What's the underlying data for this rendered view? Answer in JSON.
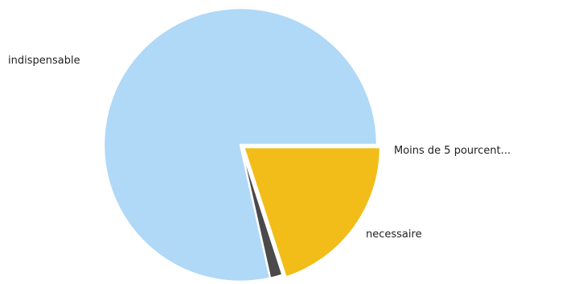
{
  "chart_data": {
    "type": "pie",
    "slices": [
      {
        "label": "indispensable",
        "value": 78.5,
        "color": "#b0d8f7"
      },
      {
        "label": "Moins de 5 pourcent...",
        "value": 1.5,
        "color": "#4a4a4a"
      },
      {
        "label": "necessaire",
        "value": 20.0,
        "color": "#f2bd19"
      }
    ],
    "start": "3 o'clock",
    "direction": "counterclockwise",
    "exploded_slice": "necessaire",
    "legend": "none"
  }
}
